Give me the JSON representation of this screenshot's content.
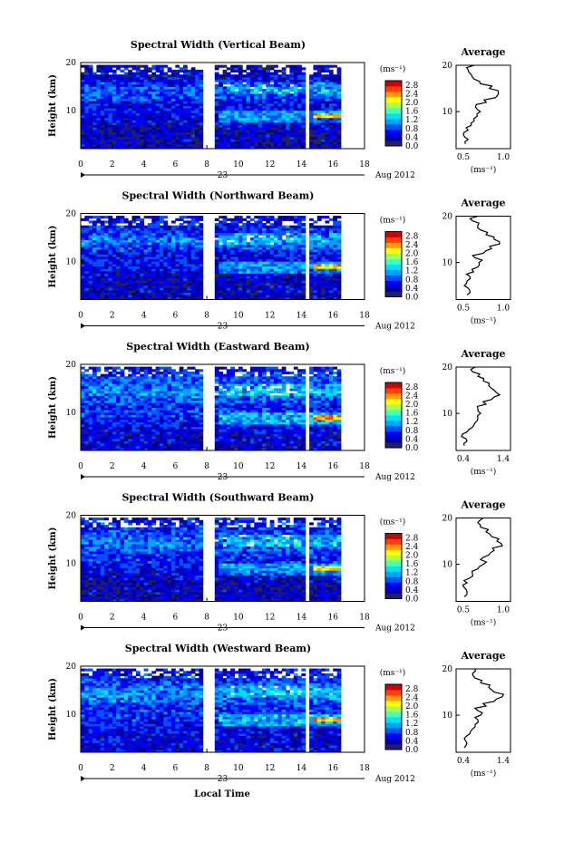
{
  "figure": {
    "xlabel": "Local Time",
    "date_label": "23",
    "month_label": "Aug 2012"
  },
  "colorbar": {
    "unit_label": "(ms⁻¹)",
    "ticks": [
      "0.0",
      "0.4",
      "0.8",
      "1.2",
      "1.6",
      "2.0",
      "2.4",
      "2.8"
    ],
    "range": [
      0.0,
      3.0
    ],
    "colors": [
      "#23205a",
      "#0000a0",
      "#0000ff",
      "#0050ff",
      "#00a0ff",
      "#00e0ff",
      "#40ffc0",
      "#a0ff60",
      "#ffff00",
      "#ffa000",
      "#ff4000",
      "#d00000"
    ]
  },
  "chart_data": [
    {
      "type": "heatmap",
      "title": "Spectral Width (Vertical Beam)",
      "ylabel": "Height (km)",
      "xlim": [
        0,
        18
      ],
      "ylim": [
        2,
        20
      ],
      "xticks": [
        0,
        2,
        4,
        6,
        8,
        10,
        12,
        14,
        16,
        18
      ],
      "yticks": [
        10,
        20
      ],
      "data_gaps_hours": [
        [
          7.6,
          8.3
        ],
        [
          14.2,
          14.4
        ],
        [
          16.5,
          18
        ]
      ],
      "profile": {
        "title": "Average",
        "xlabel": "(ms⁻¹)",
        "xlim": [
          0.3,
          1.2
        ],
        "xticks": [
          "0.5",
          "1.0"
        ],
        "ylim": [
          2,
          20
        ],
        "yticks": [
          10,
          20
        ],
        "height_km": [
          3,
          4,
          5,
          6,
          7,
          8,
          9,
          10,
          11,
          12,
          13,
          14,
          15,
          16,
          17,
          18,
          19,
          20
        ],
        "values": [
          0.45,
          0.5,
          0.42,
          0.5,
          0.55,
          0.6,
          0.65,
          0.7,
          0.62,
          0.8,
          0.95,
          1.0,
          0.85,
          0.7,
          0.6,
          0.55,
          0.5,
          0.6
        ]
      }
    },
    {
      "type": "heatmap",
      "title": "Spectral Width (Northward Beam)",
      "ylabel": "Height (km)",
      "xlim": [
        0,
        18
      ],
      "ylim": [
        2,
        20
      ],
      "xticks": [
        0,
        2,
        4,
        6,
        8,
        10,
        12,
        14,
        16,
        18
      ],
      "yticks": [
        10,
        20
      ],
      "data_gaps_hours": [
        [
          7.6,
          8.3
        ],
        [
          14.2,
          14.4
        ],
        [
          16.5,
          18
        ]
      ],
      "profile": {
        "title": "Average",
        "xlabel": "(ms⁻¹)",
        "xlim": [
          0.3,
          1.3
        ],
        "xticks": [
          "0.5",
          "1.0"
        ],
        "ylim": [
          2,
          20
        ],
        "yticks": [
          10,
          20
        ],
        "height_km": [
          3,
          4,
          5,
          6,
          7,
          8,
          9,
          10,
          11,
          12,
          13,
          14,
          15,
          16,
          17,
          18,
          19,
          20
        ],
        "values": [
          0.5,
          0.55,
          0.45,
          0.5,
          0.55,
          0.62,
          0.7,
          0.72,
          0.65,
          0.8,
          0.95,
          1.1,
          1.0,
          0.85,
          0.75,
          0.7,
          0.6,
          0.7
        ]
      }
    },
    {
      "type": "heatmap",
      "title": "Spectral Width (Eastward Beam)",
      "ylabel": "Height (km)",
      "xlim": [
        0,
        18
      ],
      "ylim": [
        2,
        20
      ],
      "xticks": [
        0,
        2,
        4,
        6,
        8,
        10,
        12,
        14,
        16,
        18
      ],
      "yticks": [
        10,
        20
      ],
      "data_gaps_hours": [
        [
          7.6,
          8.3
        ],
        [
          14.2,
          14.4
        ],
        [
          16.5,
          18
        ]
      ],
      "profile": {
        "title": "Average",
        "xlabel": "(ms⁻¹)",
        "xlim": [
          0.4,
          1.4
        ],
        "xticks": [
          "0.4",
          "1.4"
        ],
        "ylim": [
          2,
          20
        ],
        "yticks": [
          10,
          20
        ],
        "height_km": [
          3,
          4,
          5,
          6,
          7,
          8,
          9,
          10,
          11,
          12,
          13,
          14,
          15,
          16,
          17,
          18,
          19,
          20
        ],
        "values": [
          0.55,
          0.6,
          0.5,
          0.6,
          0.7,
          0.75,
          0.8,
          0.85,
          0.8,
          0.95,
          1.05,
          1.2,
          1.1,
          1.0,
          0.9,
          0.8,
          0.7,
          0.75
        ]
      }
    },
    {
      "type": "heatmap",
      "title": "Spectral Width (Southward Beam)",
      "ylabel": "Height (km)",
      "xlim": [
        0,
        18
      ],
      "ylim": [
        2,
        20
      ],
      "xticks": [
        0,
        2,
        4,
        6,
        8,
        10,
        12,
        14,
        16,
        18
      ],
      "yticks": [
        10,
        20
      ],
      "data_gaps_hours": [
        [
          7.6,
          8.3
        ],
        [
          14.2,
          14.4
        ],
        [
          16.5,
          18
        ]
      ],
      "profile": {
        "title": "Average",
        "xlabel": "(ms⁻¹)",
        "xlim": [
          0.3,
          1.3
        ],
        "xticks": [
          "0.5",
          "1.0"
        ],
        "ylim": [
          2,
          20
        ],
        "yticks": [
          10,
          20
        ],
        "height_km": [
          3,
          4,
          5,
          6,
          7,
          8,
          9,
          10,
          11,
          12,
          13,
          14,
          15,
          16,
          17,
          18,
          19,
          20
        ],
        "values": [
          0.45,
          0.5,
          0.45,
          0.5,
          0.55,
          0.6,
          0.7,
          0.8,
          0.75,
          0.9,
          1.0,
          1.15,
          1.05,
          0.95,
          0.85,
          0.75,
          0.7,
          0.8
        ]
      }
    },
    {
      "type": "heatmap",
      "title": "Spectral Width (Westward Beam)",
      "ylabel": "Height (km)",
      "xlim": [
        0,
        18
      ],
      "ylim": [
        2,
        20
      ],
      "xticks": [
        0,
        2,
        4,
        6,
        8,
        10,
        12,
        14,
        16,
        18
      ],
      "yticks": [
        10,
        20
      ],
      "data_gaps_hours": [
        [
          7.6,
          8.3
        ],
        [
          14.2,
          14.4
        ],
        [
          16.5,
          18
        ]
      ],
      "profile": {
        "title": "Average",
        "xlabel": "(ms⁻¹)",
        "xlim": [
          0.4,
          1.4
        ],
        "xticks": [
          "0.4",
          "1.4"
        ],
        "ylim": [
          2,
          20
        ],
        "yticks": [
          10,
          20
        ],
        "height_km": [
          3,
          4,
          5,
          6,
          7,
          8,
          9,
          10,
          11,
          12,
          13,
          14,
          15,
          16,
          17,
          18,
          19,
          20
        ],
        "values": [
          0.55,
          0.6,
          0.55,
          0.65,
          0.7,
          0.75,
          0.8,
          0.85,
          0.8,
          0.95,
          1.1,
          1.25,
          1.1,
          1.0,
          0.85,
          0.75,
          0.7,
          0.75
        ]
      }
    }
  ]
}
